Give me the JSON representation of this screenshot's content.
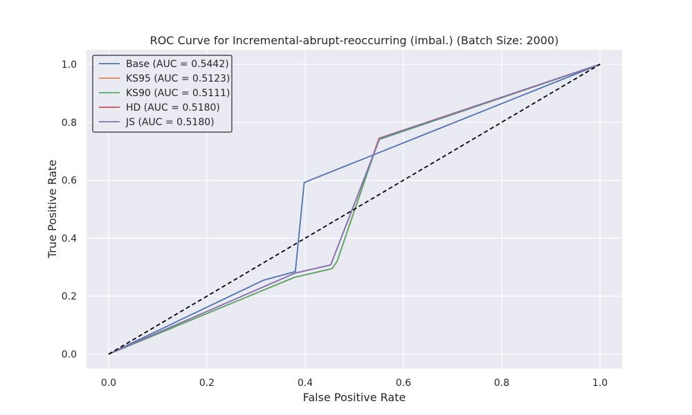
{
  "chart_data": {
    "type": "line",
    "title": "ROC Curve for Incremental-abrupt-reoccurring (imbal.) (Batch Size: 2000)",
    "xlabel": "False Positive Rate",
    "ylabel": "True Positive Rate",
    "xlim": [
      -0.045,
      1.045
    ],
    "ylim": [
      -0.05,
      1.05
    ],
    "xticks": [
      0.0,
      0.2,
      0.4,
      0.6,
      0.8,
      1.0
    ],
    "xtick_labels": [
      "0.0",
      "0.2",
      "0.4",
      "0.6",
      "0.8",
      "1.0"
    ],
    "yticks": [
      0.0,
      0.2,
      0.4,
      0.6,
      0.8,
      1.0
    ],
    "ytick_labels": [
      "0.0",
      "0.2",
      "0.4",
      "0.6",
      "0.8",
      "1.0"
    ],
    "grid": true,
    "legend_position": "top-left",
    "background_color": "#eaeaf2",
    "series": [
      {
        "name": "Base (AUC = 0.5442)",
        "color": "#4c72b0",
        "x": [
          0.0,
          0.315,
          0.38,
          0.398,
          1.0
        ],
        "y": [
          0.0,
          0.255,
          0.285,
          0.592,
          1.0
        ]
      },
      {
        "name": "KS95 (AUC = 0.5123)",
        "color": "#dd8452",
        "x": [
          0.0,
          0.378,
          0.455,
          0.465,
          0.55,
          1.0
        ],
        "y": [
          0.0,
          0.265,
          0.295,
          0.32,
          0.745,
          1.0
        ]
      },
      {
        "name": "KS90 (AUC = 0.5111)",
        "color": "#55a868",
        "x": [
          0.0,
          0.378,
          0.455,
          0.465,
          0.55,
          1.0
        ],
        "y": [
          0.0,
          0.265,
          0.295,
          0.32,
          0.74,
          1.0
        ]
      },
      {
        "name": "HD (AUC = 0.5180)",
        "color": "#c44e52",
        "x": [
          0.0,
          0.38,
          0.452,
          0.552,
          1.0
        ],
        "y": [
          0.0,
          0.28,
          0.308,
          0.745,
          1.0
        ]
      },
      {
        "name": "JS (AUC = 0.5180)",
        "color": "#8172b3",
        "x": [
          0.0,
          0.38,
          0.452,
          0.552,
          1.0
        ],
        "y": [
          0.0,
          0.28,
          0.308,
          0.745,
          1.0
        ]
      }
    ],
    "reference_line": {
      "x": [
        0.0,
        1.0
      ],
      "y": [
        0.0,
        1.0
      ],
      "color": "#000000",
      "style": "dashed"
    }
  }
}
